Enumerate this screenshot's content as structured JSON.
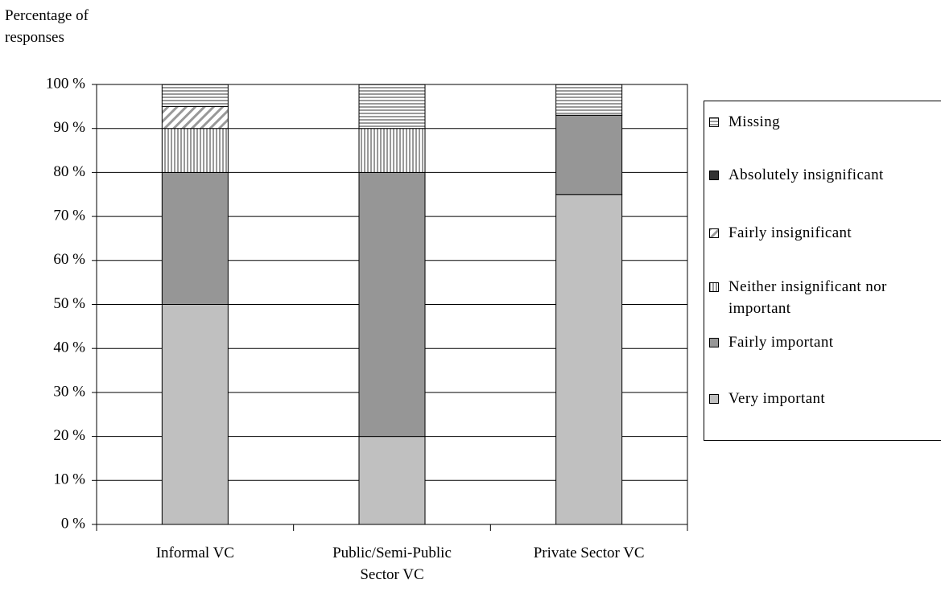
{
  "chart_data": {
    "type": "stacked_bar",
    "y_label": "Percentage of responses",
    "categories": [
      "Informal VC",
      "Public/Semi-Public Sector VC",
      "Private  Sector VC"
    ],
    "series": [
      {
        "name": "Very important",
        "color": "#c0c0c0",
        "pattern": "solid",
        "values": [
          50,
          20,
          75
        ]
      },
      {
        "name": "Fairly important",
        "color": "#969696",
        "pattern": "solid",
        "values": [
          30,
          60,
          18
        ]
      },
      {
        "name": "Neither insignificant nor important",
        "color": "#999999",
        "pattern": "vertical",
        "values": [
          10,
          10,
          0
        ]
      },
      {
        "name": "Fairly insignificant",
        "color": "#999999",
        "pattern": "diagonal",
        "values": [
          5,
          0,
          0
        ]
      },
      {
        "name": "Absolutely insignificant",
        "color": "#333333",
        "pattern": "solid",
        "values": [
          0,
          0,
          0
        ]
      },
      {
        "name": "Missing",
        "color": "#999999",
        "pattern": "horizontal",
        "values": [
          5,
          10,
          7
        ]
      }
    ],
    "ylim": [
      0,
      100
    ],
    "yticks": [
      {
        "value": 0,
        "label": "0 %"
      },
      {
        "value": 10,
        "label": "10 %"
      },
      {
        "value": 20,
        "label": "20 %"
      },
      {
        "value": 30,
        "label": "30 %"
      },
      {
        "value": 40,
        "label": "40 %"
      },
      {
        "value": 50,
        "label": "50 %"
      },
      {
        "value": 60,
        "label": "60 %"
      },
      {
        "value": 70,
        "label": "70 %"
      },
      {
        "value": 80,
        "label": "80 %"
      },
      {
        "value": 90,
        "label": "90 %"
      },
      {
        "value": 100,
        "label": "100 %"
      }
    ],
    "grid": true,
    "legend": "right"
  }
}
